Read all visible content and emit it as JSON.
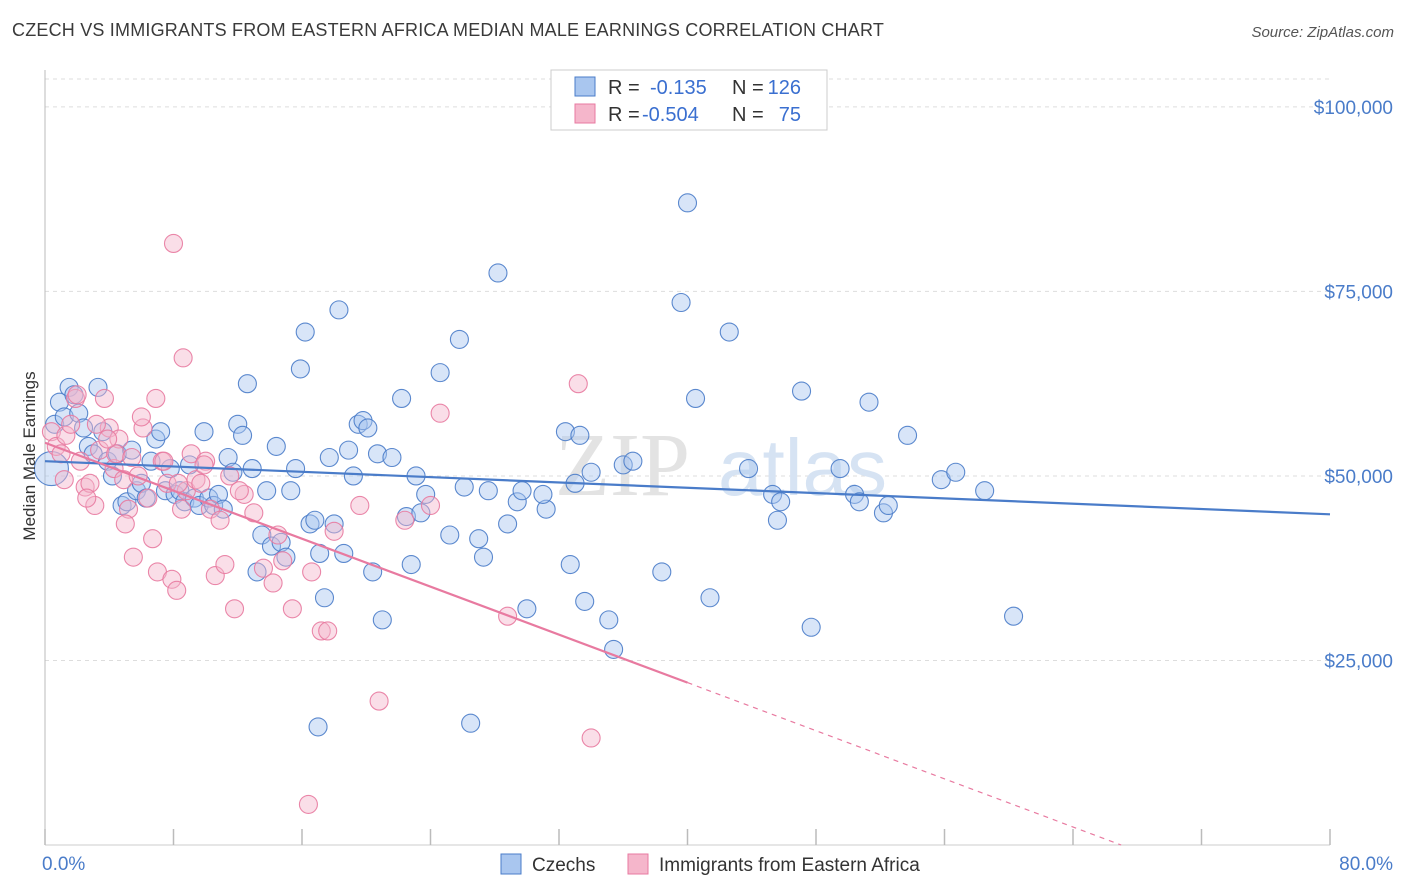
{
  "title": "CZECH VS IMMIGRANTS FROM EASTERN AFRICA MEDIAN MALE EARNINGS CORRELATION CHART",
  "source": "Source: ZipAtlas.com",
  "watermark": {
    "zip": "ZIP",
    "atlas": "atlas"
  },
  "stats": [
    {
      "r_label": "R =",
      "r_value": "-0.135",
      "n_label": "N =",
      "n_value": "126",
      "color": "#4a7cc9"
    },
    {
      "r_label": "R =",
      "r_value": "-0.504",
      "n_label": "N =",
      "n_value": "75",
      "color": "#e87aa0"
    }
  ],
  "chart_data": {
    "type": "scatter",
    "title": "CZECH VS IMMIGRANTS FROM EASTERN AFRICA MEDIAN MALE EARNINGS CORRELATION CHART",
    "xlabel": "",
    "ylabel": "Median Male Earnings",
    "xlim": [
      0,
      80
    ],
    "ylim": [
      0,
      105000
    ],
    "x_tick_labels": [
      "0.0%",
      "80.0%"
    ],
    "y_ticks": [
      25000,
      50000,
      75000,
      100000
    ],
    "y_tick_labels": [
      "$25,000",
      "$50,000",
      "$75,000",
      "$100,000"
    ],
    "grid": true,
    "legend_position": "bottom-center",
    "series": [
      {
        "name": "Czechs",
        "color": "#4a7cc9",
        "fill": "#a9c6ef",
        "trend": {
          "x": [
            0,
            80
          ],
          "y": [
            52000,
            44800
          ],
          "dashed_from": null
        },
        "points": [
          [
            0.4,
            51000
          ],
          [
            0.6,
            57000
          ],
          [
            0.9,
            60000
          ],
          [
            1.2,
            58000
          ],
          [
            1.5,
            62000
          ],
          [
            1.8,
            61000
          ],
          [
            2.1,
            58500
          ],
          [
            2.4,
            56500
          ],
          [
            2.7,
            54000
          ],
          [
            3.0,
            53000
          ],
          [
            3.3,
            62000
          ],
          [
            3.6,
            56000
          ],
          [
            3.9,
            52000
          ],
          [
            4.2,
            50000
          ],
          [
            4.5,
            53000
          ],
          [
            4.8,
            46000
          ],
          [
            5.1,
            46500
          ],
          [
            5.4,
            53500
          ],
          [
            5.7,
            48000
          ],
          [
            6.0,
            49000
          ],
          [
            6.3,
            47000
          ],
          [
            6.6,
            52000
          ],
          [
            6.9,
            55000
          ],
          [
            7.2,
            56000
          ],
          [
            7.5,
            48000
          ],
          [
            7.8,
            51000
          ],
          [
            8.1,
            47500
          ],
          [
            8.4,
            48000
          ],
          [
            8.7,
            46500
          ],
          [
            9.0,
            51500
          ],
          [
            9.3,
            47000
          ],
          [
            9.6,
            46000
          ],
          [
            9.9,
            56000
          ],
          [
            10.2,
            47000
          ],
          [
            10.5,
            46000
          ],
          [
            10.8,
            47500
          ],
          [
            11.1,
            45500
          ],
          [
            11.4,
            52500
          ],
          [
            11.7,
            50500
          ],
          [
            12.0,
            57000
          ],
          [
            12.3,
            55500
          ],
          [
            12.6,
            62500
          ],
          [
            12.9,
            51000
          ],
          [
            13.2,
            37000
          ],
          [
            13.5,
            42000
          ],
          [
            13.8,
            48000
          ],
          [
            14.1,
            40500
          ],
          [
            14.4,
            54000
          ],
          [
            14.7,
            41000
          ],
          [
            15.0,
            39000
          ],
          [
            15.3,
            48000
          ],
          [
            15.6,
            51000
          ],
          [
            15.9,
            64500
          ],
          [
            16.2,
            69500
          ],
          [
            16.5,
            43500
          ],
          [
            16.8,
            44000
          ],
          [
            17.1,
            39500
          ],
          [
            17.4,
            33500
          ],
          [
            17.7,
            52500
          ],
          [
            18.0,
            43500
          ],
          [
            18.3,
            72500
          ],
          [
            18.6,
            39500
          ],
          [
            18.9,
            53500
          ],
          [
            19.2,
            50000
          ],
          [
            19.5,
            57000
          ],
          [
            19.8,
            57500
          ],
          [
            20.1,
            56500
          ],
          [
            20.4,
            37000
          ],
          [
            20.7,
            53000
          ],
          [
            21.0,
            30500
          ],
          [
            21.6,
            52500
          ],
          [
            22.2,
            60500
          ],
          [
            22.5,
            44500
          ],
          [
            22.8,
            38000
          ],
          [
            23.1,
            50000
          ],
          [
            23.4,
            45000
          ],
          [
            23.7,
            47500
          ],
          [
            24.6,
            64000
          ],
          [
            25.2,
            42000
          ],
          [
            25.8,
            68500
          ],
          [
            26.1,
            48500
          ],
          [
            27.0,
            41500
          ],
          [
            27.3,
            39000
          ],
          [
            27.6,
            48000
          ],
          [
            28.2,
            77500
          ],
          [
            28.8,
            43500
          ],
          [
            29.4,
            46500
          ],
          [
            29.7,
            48000
          ],
          [
            30.0,
            32000
          ],
          [
            31.2,
            45500
          ],
          [
            32.4,
            56000
          ],
          [
            32.7,
            38000
          ],
          [
            33.0,
            49000
          ],
          [
            33.3,
            55500
          ],
          [
            33.6,
            33000
          ],
          [
            34.0,
            50500
          ],
          [
            35.1,
            30500
          ],
          [
            35.4,
            26500
          ],
          [
            36.0,
            51500
          ],
          [
            36.6,
            52000
          ],
          [
            38.4,
            37000
          ],
          [
            39.6,
            73500
          ],
          [
            40.5,
            60500
          ],
          [
            41.4,
            33500
          ],
          [
            42.6,
            69500
          ],
          [
            43.8,
            51000
          ],
          [
            45.3,
            47500
          ],
          [
            45.6,
            44000
          ],
          [
            47.1,
            61500
          ],
          [
            47.7,
            29500
          ],
          [
            49.5,
            51000
          ],
          [
            50.4,
            47500
          ],
          [
            50.7,
            46500
          ],
          [
            51.3,
            60000
          ],
          [
            52.2,
            45000
          ],
          [
            52.5,
            46000
          ],
          [
            53.7,
            55500
          ],
          [
            55.8,
            49500
          ],
          [
            56.7,
            50500
          ],
          [
            58.5,
            48000
          ],
          [
            60.3,
            31000
          ],
          [
            40.0,
            87000
          ],
          [
            17.0,
            16000
          ],
          [
            26.5,
            16500
          ],
          [
            31.0,
            47500
          ],
          [
            45.8,
            46500
          ]
        ]
      },
      {
        "name": "Immigrants from Eastern Africa",
        "color": "#e87aa0",
        "fill": "#f5b6cb",
        "trend": {
          "x": [
            0,
            40
          ],
          "y": [
            54500,
            22000
          ],
          "dashed_to": [
            67,
            0
          ]
        },
        "points": [
          [
            0.4,
            56000
          ],
          [
            0.7,
            54000
          ],
          [
            1.0,
            53000
          ],
          [
            1.3,
            55500
          ],
          [
            1.6,
            57000
          ],
          [
            1.9,
            60500
          ],
          [
            2.2,
            52000
          ],
          [
            2.5,
            48500
          ],
          [
            2.8,
            49000
          ],
          [
            3.1,
            46000
          ],
          [
            3.4,
            53500
          ],
          [
            3.7,
            60500
          ],
          [
            4.0,
            56500
          ],
          [
            4.3,
            51000
          ],
          [
            4.6,
            55000
          ],
          [
            4.9,
            49500
          ],
          [
            5.2,
            45500
          ],
          [
            5.5,
            39000
          ],
          [
            5.8,
            50000
          ],
          [
            6.1,
            56500
          ],
          [
            6.4,
            47000
          ],
          [
            6.7,
            41500
          ],
          [
            7.0,
            37000
          ],
          [
            7.3,
            52000
          ],
          [
            7.6,
            49000
          ],
          [
            7.9,
            36000
          ],
          [
            8.2,
            34500
          ],
          [
            8.5,
            45500
          ],
          [
            8.8,
            48000
          ],
          [
            9.1,
            53000
          ],
          [
            9.4,
            49500
          ],
          [
            9.7,
            49000
          ],
          [
            10.0,
            52000
          ],
          [
            10.3,
            45500
          ],
          [
            10.6,
            36500
          ],
          [
            10.9,
            44000
          ],
          [
            11.2,
            38000
          ],
          [
            11.8,
            32000
          ],
          [
            12.4,
            47500
          ],
          [
            13.0,
            45000
          ],
          [
            13.6,
            37500
          ],
          [
            14.2,
            35500
          ],
          [
            14.5,
            42000
          ],
          [
            14.8,
            38500
          ],
          [
            15.4,
            32000
          ],
          [
            16.6,
            37000
          ],
          [
            17.2,
            29000
          ],
          [
            17.6,
            29000
          ],
          [
            18.0,
            42500
          ],
          [
            19.6,
            46000
          ],
          [
            20.8,
            19500
          ],
          [
            22.4,
            44000
          ],
          [
            24.0,
            46000
          ],
          [
            24.6,
            58500
          ],
          [
            28.8,
            31000
          ],
          [
            34.0,
            14500
          ],
          [
            33.2,
            62500
          ],
          [
            16.4,
            5500
          ],
          [
            8.0,
            81500
          ],
          [
            8.6,
            66000
          ],
          [
            6.9,
            60500
          ],
          [
            2.0,
            61000
          ],
          [
            3.2,
            57000
          ],
          [
            4.4,
            53000
          ],
          [
            5.0,
            43500
          ],
          [
            6.0,
            58000
          ],
          [
            7.4,
            52000
          ],
          [
            8.3,
            49000
          ],
          [
            9.9,
            51500
          ],
          [
            11.5,
            50000
          ],
          [
            12.1,
            48000
          ],
          [
            1.2,
            49500
          ],
          [
            2.6,
            47000
          ],
          [
            3.9,
            55000
          ],
          [
            5.4,
            52500
          ]
        ]
      }
    ]
  },
  "legend": [
    {
      "label": "Czechs",
      "color": "#4a7cc9",
      "fill": "#a9c6ef"
    },
    {
      "label": "Immigrants from Eastern Africa",
      "color": "#e87aa0",
      "fill": "#f5b6cb"
    }
  ]
}
